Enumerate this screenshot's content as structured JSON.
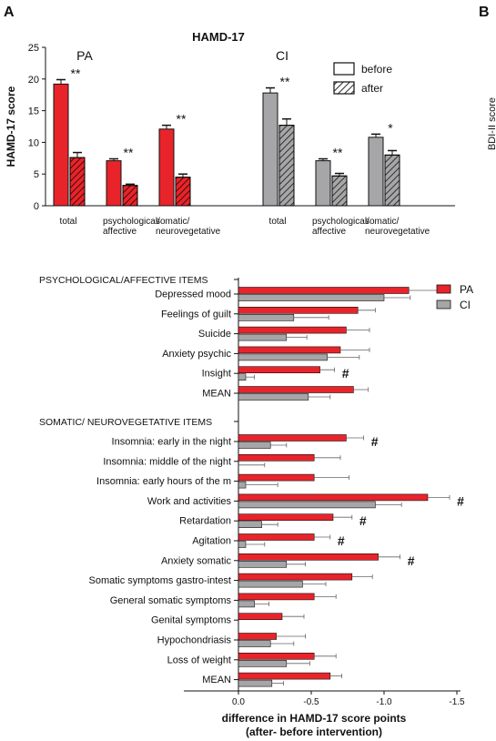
{
  "panel_labels": {
    "a": "A",
    "b": "B"
  },
  "edge_fragment": "BDI-II score",
  "colors": {
    "pa": "#e8242a",
    "ci": "#a6a6a8",
    "edge": "#111111"
  },
  "chart_data": [
    {
      "id": "top",
      "type": "bar",
      "title": "HAMD-17",
      "ylabel": "HAMD-17 score",
      "ylim": [
        0,
        25
      ],
      "yticks": [
        "0",
        "5",
        "10",
        "15",
        "20",
        "25"
      ],
      "legend": {
        "before": "before",
        "after": "after",
        "placement": "top-right"
      },
      "groups": [
        {
          "name": "PA",
          "color": "#e8242a",
          "categories": [
            {
              "label": [
                "total"
              ],
              "before": 19.2,
              "before_err": 0.7,
              "after": 7.6,
              "after_err": 0.8,
              "sig": "**"
            },
            {
              "label": [
                "psychological/",
                "affective"
              ],
              "before": 7.1,
              "before_err": 0.3,
              "after": 3.2,
              "after_err": 0.2,
              "sig": "**"
            },
            {
              "label": [
                "somatic/",
                "neurovegetative"
              ],
              "before": 12.1,
              "before_err": 0.6,
              "after": 4.5,
              "after_err": 0.5,
              "sig": "**"
            }
          ]
        },
        {
          "name": "CI",
          "color": "#a6a6a8",
          "categories": [
            {
              "label": [
                "total"
              ],
              "before": 17.8,
              "before_err": 0.8,
              "after": 12.7,
              "after_err": 1.0,
              "sig": "**"
            },
            {
              "label": [
                "psychological/",
                "affective"
              ],
              "before": 7.1,
              "before_err": 0.3,
              "after": 4.7,
              "after_err": 0.4,
              "sig": "**"
            },
            {
              "label": [
                "somatic/",
                "neurovegetative"
              ],
              "before": 10.8,
              "before_err": 0.5,
              "after": 8.0,
              "after_err": 0.7,
              "sig": "*"
            }
          ]
        }
      ]
    },
    {
      "id": "bottom",
      "type": "bar",
      "orientation": "horizontal",
      "xlabel": [
        "difference in HAMD-17 score points",
        "(after- before intervention)"
      ],
      "xlim": [
        0,
        -1.5
      ],
      "xticks": [
        {
          "v": 0,
          "t": "0.0"
        },
        {
          "v": -0.5,
          "t": "-0.5"
        },
        {
          "v": -1.0,
          "t": "-1.0"
        },
        {
          "v": -1.5,
          "t": "-1.5"
        }
      ],
      "series": [
        {
          "name": "PA",
          "color": "#e8242a"
        },
        {
          "name": "CI",
          "color": "#a6a6a8"
        }
      ],
      "legend_placement": "top-right",
      "sections": [
        {
          "header": "PSYCHOLOGICAL/AFFECTIVE ITEMS",
          "items": [
            {
              "label": "Depressed mood",
              "pa": -1.17,
              "pa_err": 0.2,
              "ci": -1.0,
              "ci_err": 0.18,
              "mark": ""
            },
            {
              "label": "Feelings of guilt",
              "pa": -0.82,
              "pa_err": 0.12,
              "ci": -0.38,
              "ci_err": 0.24,
              "mark": ""
            },
            {
              "label": "Suicide",
              "pa": -0.74,
              "pa_err": 0.16,
              "ci": -0.33,
              "ci_err": 0.14,
              "mark": ""
            },
            {
              "label": "Anxiety psychic",
              "pa": -0.7,
              "pa_err": 0.2,
              "ci": -0.61,
              "ci_err": 0.22,
              "mark": ""
            },
            {
              "label": "Insight",
              "pa": -0.56,
              "pa_err": 0.1,
              "ci": -0.05,
              "ci_err": 0.06,
              "mark": "#"
            },
            {
              "label": "MEAN",
              "pa": -0.79,
              "pa_err": 0.1,
              "ci": -0.48,
              "ci_err": 0.15,
              "mark": ""
            }
          ]
        },
        {
          "header": "SOMATIC/ NEUROVEGETATIVE ITEMS",
          "items": [
            {
              "label": "Insomnia: early in the night",
              "pa": -0.74,
              "pa_err": 0.12,
              "ci": -0.22,
              "ci_err": 0.11,
              "mark": "#"
            },
            {
              "label": "Insomnia: middle of the night",
              "pa": -0.52,
              "pa_err": 0.18,
              "ci": 0.0,
              "ci_err": 0.18,
              "mark": ""
            },
            {
              "label": "Insomnia: early hours of the m",
              "pa": -0.52,
              "pa_err": 0.24,
              "ci": -0.05,
              "ci_err": 0.22,
              "mark": ""
            },
            {
              "label": "Work and activities",
              "pa": -1.3,
              "pa_err": 0.15,
              "ci": -0.94,
              "ci_err": 0.18,
              "mark": "#"
            },
            {
              "label": "Retardation",
              "pa": -0.65,
              "pa_err": 0.13,
              "ci": -0.16,
              "ci_err": 0.11,
              "mark": "#"
            },
            {
              "label": "Agitation",
              "pa": -0.52,
              "pa_err": 0.11,
              "ci": -0.05,
              "ci_err": 0.13,
              "mark": "#"
            },
            {
              "label": "Anxiety somatic",
              "pa": -0.96,
              "pa_err": 0.15,
              "ci": -0.33,
              "ci_err": 0.13,
              "mark": "#"
            },
            {
              "label": "Somatic symptoms gastro-intest",
              "pa": -0.78,
              "pa_err": 0.14,
              "ci": -0.44,
              "ci_err": 0.16,
              "mark": ""
            },
            {
              "label": "General somatic symptoms",
              "pa": -0.52,
              "pa_err": 0.15,
              "ci": -0.11,
              "ci_err": 0.1,
              "mark": ""
            },
            {
              "label": "Genital symptoms",
              "pa": -0.3,
              "pa_err": 0.15,
              "ci": 0.0,
              "ci_err": 0.0,
              "mark": ""
            },
            {
              "label": "Hypochondriasis",
              "pa": -0.26,
              "pa_err": 0.2,
              "ci": -0.22,
              "ci_err": 0.16,
              "mark": ""
            },
            {
              "label": "Loss of weight",
              "pa": -0.52,
              "pa_err": 0.15,
              "ci": -0.33,
              "ci_err": 0.16,
              "mark": ""
            },
            {
              "label": "MEAN",
              "pa": -0.63,
              "pa_err": 0.08,
              "ci": -0.23,
              "ci_err": 0.08,
              "mark": ""
            }
          ]
        }
      ]
    }
  ]
}
